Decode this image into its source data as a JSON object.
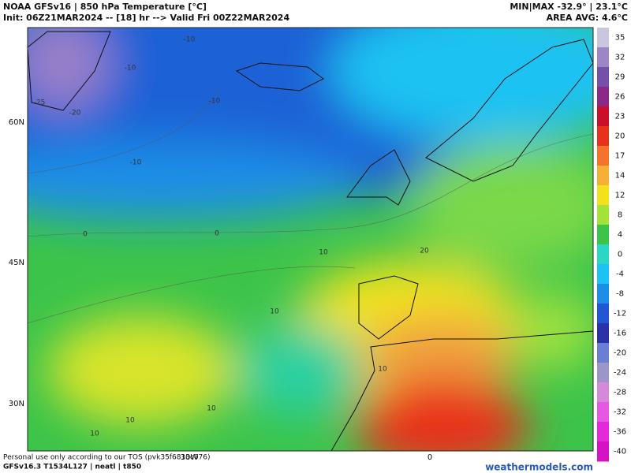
{
  "header": {
    "title": "NOAA GFSv16 | 850 hPa Temperature [°C]",
    "init": "Init: 06Z21MAR2024 -- [18] hr --> Valid Fri 00Z22MAR2024",
    "minmax": "MIN|MAX -32.9° | 23.1°C",
    "avg": "AREA AVG: 4.6°C"
  },
  "map": {
    "lat_labels": [
      "60N",
      "45N",
      "30N"
    ],
    "lon_labels": [
      "30W",
      "0"
    ],
    "contour_labels": [
      -10,
      -10,
      -10,
      -10,
      -25,
      -20,
      0,
      0,
      10,
      10,
      10,
      10,
      10,
      10,
      20
    ]
  },
  "colorbar": {
    "ticks": [
      35,
      32,
      29,
      26,
      23,
      20,
      17,
      14,
      12,
      8,
      4,
      0,
      -4,
      -8,
      -12,
      -16,
      -20,
      -24,
      -28,
      -32,
      -36,
      -40
    ],
    "colors": [
      "#c9c6de",
      "#9c86c6",
      "#7450a8",
      "#8a2a86",
      "#c8102a",
      "#e8301c",
      "#f4742c",
      "#f6b038",
      "#f2e21e",
      "#a4e23a",
      "#3cc44a",
      "#2cd6c4",
      "#1ec2f2",
      "#1c8ee6",
      "#2256d2",
      "#2c32a6",
      "#6a7ed2",
      "#9a96c8",
      "#d48ad8",
      "#e458e4",
      "#e42ad8",
      "#d414c4"
    ]
  },
  "footer": {
    "tos": "Personal use only according to our TOS (pvk35f6813c076)",
    "model": "GFSv16.3 T1534L127 | neatl | t850",
    "site": "weathermodels.com"
  }
}
